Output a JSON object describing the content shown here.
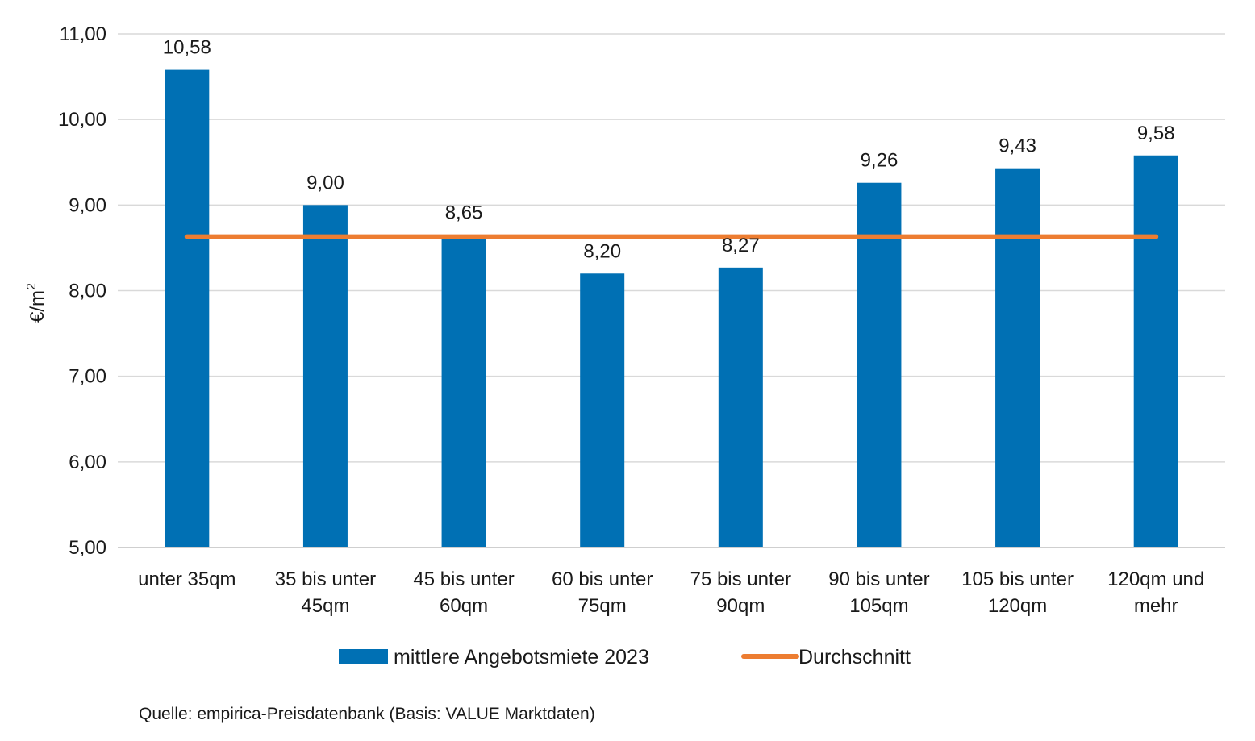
{
  "chart_data": {
    "type": "bar",
    "categories": [
      [
        "unter 35qm"
      ],
      [
        "35 bis unter",
        "45qm"
      ],
      [
        "45 bis unter",
        "60qm"
      ],
      [
        "60 bis unter",
        "75qm"
      ],
      [
        "75 bis unter",
        "90qm"
      ],
      [
        "90 bis unter",
        "105qm"
      ],
      [
        "105 bis unter",
        "120qm"
      ],
      [
        "120qm und",
        "mehr"
      ]
    ],
    "series": [
      {
        "name": "mittlere Angebotsmiete 2023",
        "type": "bar",
        "color": "#0070b4",
        "values": [
          10.58,
          9.0,
          8.65,
          8.2,
          8.27,
          9.26,
          9.43,
          9.58
        ],
        "labels": [
          "10,58",
          "9,00",
          "8,65",
          "8,20",
          "8,27",
          "9,26",
          "9,43",
          "9,58"
        ]
      },
      {
        "name": "Durchschnitt",
        "type": "line",
        "color": "#ed7d31",
        "values": [
          8.63,
          8.63,
          8.63,
          8.63,
          8.63,
          8.63,
          8.63,
          8.63
        ]
      }
    ],
    "ylabel_main": "€/m",
    "ylabel_sup": "2",
    "ylim": [
      5,
      11
    ],
    "yticks": [
      5,
      6,
      7,
      8,
      9,
      10,
      11
    ],
    "ytick_labels": [
      "5,00",
      "6,00",
      "7,00",
      "8,00",
      "9,00",
      "10,00",
      "11,00"
    ],
    "grid": true,
    "legend_position": "bottom"
  },
  "source": "Quelle: empirica-Preisdatenbank (Basis: VALUE Marktdaten)"
}
